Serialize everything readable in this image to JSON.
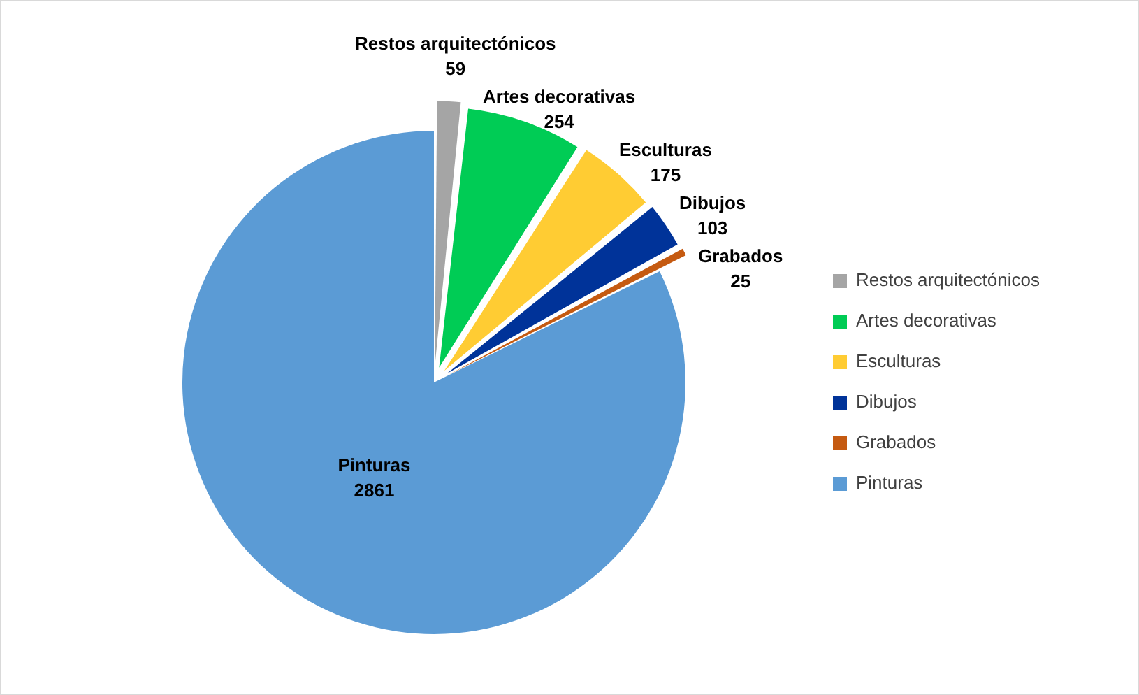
{
  "chart_data": {
    "type": "pie",
    "categories": [
      "Restos arquitectónicos",
      "Artes decorativas",
      "Esculturas",
      "Dibujos",
      "Grabados",
      "Pinturas"
    ],
    "values": [
      59,
      254,
      175,
      103,
      25,
      2861
    ],
    "colors": [
      "#a5a5a5",
      "#00cc55",
      "#ffcc33",
      "#003399",
      "#c55a11",
      "#5b9bd5"
    ],
    "data_labels": true,
    "legend": "right"
  }
}
